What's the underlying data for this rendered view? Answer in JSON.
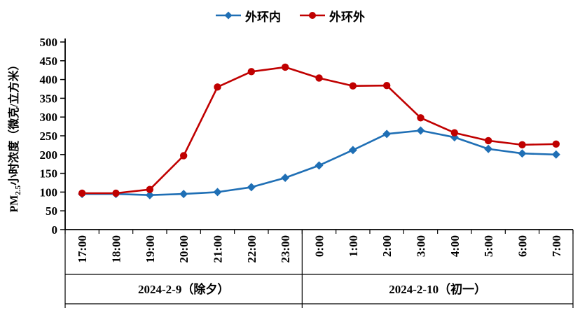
{
  "chart_data": {
    "type": "line",
    "title": "",
    "categories": [
      "17:00",
      "18:00",
      "19:00",
      "20:00",
      "21:00",
      "22:00",
      "23:00",
      "0:00",
      "1:00",
      "2:00",
      "3:00",
      "4:00",
      "5:00",
      "6:00",
      "7:00"
    ],
    "category_groups": [
      {
        "label": "2024-2-9（除夕）",
        "span": 7
      },
      {
        "label": "2024-2-10（初一）",
        "span": 8
      }
    ],
    "series": [
      {
        "name": "外环内",
        "color": "#1F6FB5",
        "marker": "diamond",
        "values": [
          95,
          95,
          92,
          95,
          100,
          113,
          138,
          171,
          212,
          255,
          264,
          246,
          215,
          203,
          200
        ]
      },
      {
        "name": "外环外",
        "color": "#C00000",
        "marker": "circle",
        "values": [
          97,
          97,
          107,
          197,
          380,
          421,
          433,
          404,
          383,
          384,
          298,
          258,
          237,
          226,
          228
        ]
      }
    ],
    "ylabel": {
      "prefix": "PM",
      "sub": "2.5",
      "rest": "小时浓度（微克/立方米）"
    },
    "ylim": [
      0,
      500
    ],
    "ytick_step": 50,
    "grid": false,
    "legend_position": "top",
    "axis_color": "#000000"
  }
}
